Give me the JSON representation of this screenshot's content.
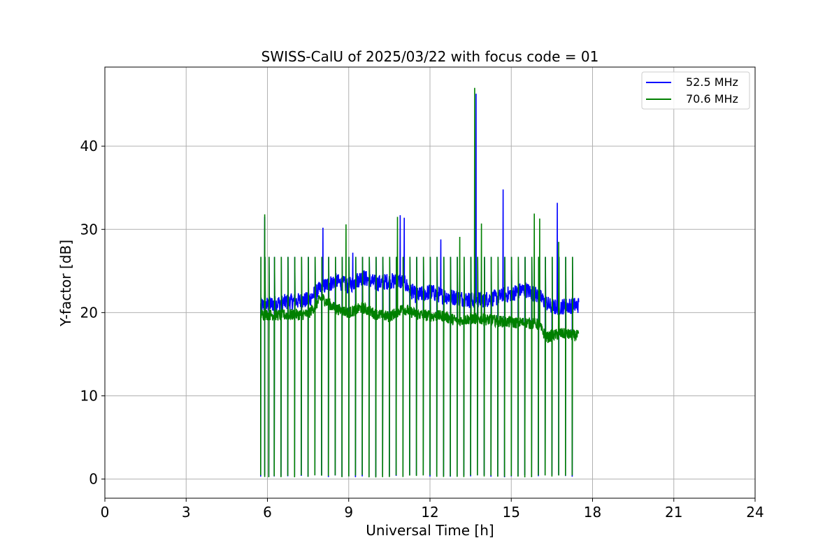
{
  "chart_data": {
    "type": "line",
    "title": "SWISS-CalU of 2025/03/22 with focus code = 01",
    "xlabel": "Universal Time [h]",
    "ylabel": "Y-factor [dB]",
    "xlim": [
      0,
      24
    ],
    "ylim": [
      -2.3,
      49.5
    ],
    "xticks": [
      0,
      3,
      6,
      9,
      12,
      15,
      18,
      21,
      24
    ],
    "yticks": [
      0,
      10,
      20,
      30,
      40
    ],
    "grid": true,
    "legend_position": "top-right",
    "calibration_times": [
      5.75,
      5.9,
      6.05,
      6.25,
      6.5,
      6.75,
      7.0,
      7.25,
      7.5,
      7.75,
      8.0,
      8.25,
      8.5,
      8.75,
      9.0,
      9.25,
      9.5,
      9.75,
      10.0,
      10.25,
      10.5,
      10.75,
      11.0,
      11.25,
      11.5,
      11.75,
      12.0,
      12.25,
      12.5,
      12.75,
      13.0,
      13.25,
      13.5,
      13.75,
      14.0,
      14.25,
      14.5,
      14.75,
      15.0,
      15.25,
      15.5,
      15.75,
      16.0,
      16.25,
      16.5,
      16.75,
      17.0,
      17.25
    ],
    "series": [
      {
        "name": "52.5 MHz",
        "color": "#0000ff",
        "baseline": [
          [
            5.75,
            20.8
          ],
          [
            6.5,
            21.2
          ],
          [
            7.5,
            21.5
          ],
          [
            8.0,
            23.0
          ],
          [
            8.5,
            23.8
          ],
          [
            9.0,
            23.2
          ],
          [
            9.5,
            24.3
          ],
          [
            10.0,
            23.5
          ],
          [
            10.5,
            23.8
          ],
          [
            11.0,
            23.7
          ],
          [
            11.5,
            22.0
          ],
          [
            12.0,
            22.5
          ],
          [
            12.5,
            22.0
          ],
          [
            13.0,
            21.8
          ],
          [
            13.5,
            21.5
          ],
          [
            14.0,
            21.6
          ],
          [
            14.5,
            21.8
          ],
          [
            15.0,
            22.3
          ],
          [
            15.5,
            22.8
          ],
          [
            16.0,
            22.0
          ],
          [
            16.5,
            20.6
          ],
          [
            17.0,
            20.8
          ],
          [
            17.5,
            20.9
          ]
        ],
        "peaks": [
          [
            5.9,
            31.5
          ],
          [
            8.05,
            30.2
          ],
          [
            9.15,
            27.2
          ],
          [
            10.9,
            31.7
          ],
          [
            11.05,
            31.4
          ],
          [
            12.4,
            28.8
          ],
          [
            13.7,
            46.3
          ],
          [
            14.7,
            34.8
          ],
          [
            16.7,
            33.2
          ]
        ]
      },
      {
        "name": "70.6 MHz",
        "color": "#008000",
        "baseline": [
          [
            5.75,
            19.8
          ],
          [
            6.5,
            19.7
          ],
          [
            7.5,
            19.8
          ],
          [
            8.0,
            21.8
          ],
          [
            8.5,
            20.5
          ],
          [
            9.0,
            20.0
          ],
          [
            9.5,
            20.6
          ],
          [
            10.0,
            19.8
          ],
          [
            10.5,
            19.5
          ],
          [
            11.0,
            20.5
          ],
          [
            11.5,
            19.8
          ],
          [
            12.0,
            19.6
          ],
          [
            12.5,
            19.6
          ],
          [
            13.0,
            19.0
          ],
          [
            13.5,
            19.3
          ],
          [
            14.0,
            19.2
          ],
          [
            14.5,
            19.0
          ],
          [
            15.0,
            18.8
          ],
          [
            15.5,
            18.8
          ],
          [
            16.0,
            18.6
          ],
          [
            16.3,
            17.0
          ],
          [
            16.8,
            17.5
          ],
          [
            17.5,
            17.2
          ]
        ],
        "peaks": [
          [
            5.9,
            31.8
          ],
          [
            8.9,
            30.6
          ],
          [
            10.8,
            31.5
          ],
          [
            13.1,
            29.1
          ],
          [
            13.65,
            47.0
          ],
          [
            13.9,
            30.7
          ],
          [
            15.85,
            31.9
          ],
          [
            16.05,
            31.3
          ],
          [
            16.75,
            28.5
          ]
        ]
      }
    ]
  }
}
